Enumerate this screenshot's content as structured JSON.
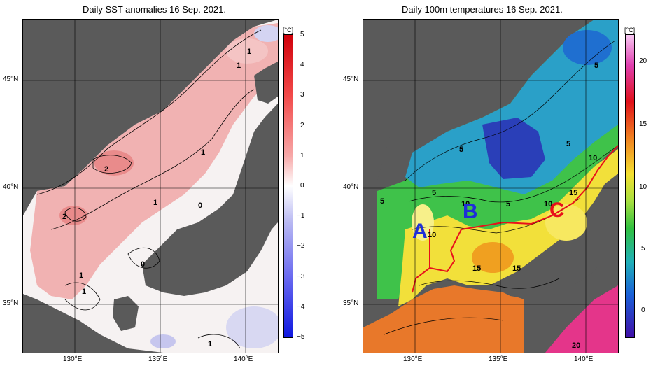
{
  "left_panel": {
    "title": "Daily SST anomalies 16 Sep. 2021.",
    "unit": "[°C]",
    "colorbar_ticks": [
      "5",
      "4",
      "3",
      "2",
      "1",
      "0",
      "−1",
      "−2",
      "−3",
      "−4",
      "−5"
    ],
    "contour_labels": [
      "1",
      "1",
      "2",
      "1",
      "2",
      "0",
      "0",
      "1",
      "1",
      "1",
      "1"
    ]
  },
  "right_panel": {
    "title": "Daily 100m temperatures 16 Sep. 2021.",
    "unit": "[°C]",
    "colorbar_ticks": [
      "20",
      "15",
      "10",
      "5",
      "0"
    ],
    "contour_labels": [
      "5",
      "5",
      "5",
      "5",
      "5",
      "5",
      "10",
      "10",
      "10",
      "15",
      "15",
      "15",
      "10",
      "20"
    ],
    "section_labels": {
      "a": "A",
      "b": "B",
      "c": "C"
    }
  },
  "axes": {
    "lat_ticks": [
      "45°N",
      "40°N",
      "35°N"
    ],
    "lon_ticks": [
      "130°E",
      "135°E",
      "140°E"
    ]
  },
  "colors": {
    "land": "#5a5a5a",
    "ice_white": "#f2f2f2",
    "section_line": "#e8101a",
    "label_blue": "#1e2fd8",
    "label_red": "#e8101a"
  }
}
